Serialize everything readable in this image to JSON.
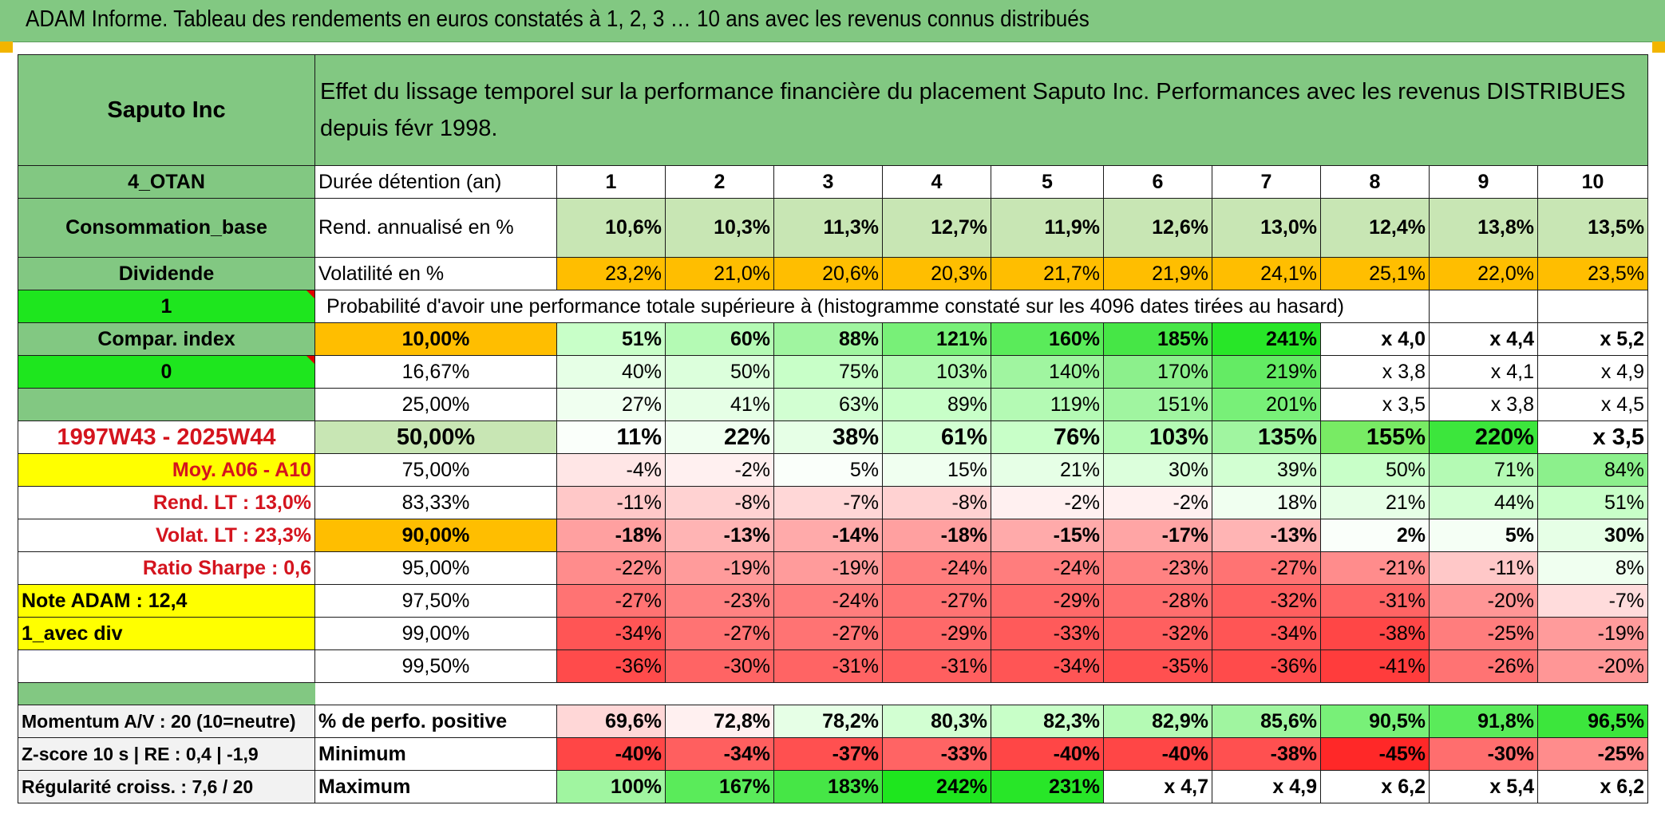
{
  "header": {
    "title": "ADAM Informe. Tableau des rendements en euros constatés à 1, 2, 3 … 10 ans avec les revenus connus distribués"
  },
  "left": {
    "company": "Saputo Inc",
    "group": "4_OTAN",
    "sector": "Consommation_base",
    "income": "Dividende",
    "flag1": "1",
    "compar": "Compar. index",
    "flag0": "0",
    "period": "1997W43 - 2025W44",
    "moy": "Moy. A06 - A10",
    "rend_lt": "Rend. LT :    13,0%",
    "volat_lt": "Volat. LT :    23,3%",
    "sharpe": "Ratio Sharpe :    0,6",
    "note": "Note ADAM : 12,4",
    "mode": "1_avec div"
  },
  "main": {
    "title": "Effet du lissage temporel sur la performance financière du placement Saputo Inc. Performances avec les revenus DISTRIBUES depuis févr 1998.",
    "duree_label": "Durée détention (an)",
    "years": [
      "1",
      "2",
      "3",
      "4",
      "5",
      "6",
      "7",
      "8",
      "9",
      "10"
    ],
    "rend_label": "Rend. annualisé en %",
    "rend": [
      "10,6%",
      "10,3%",
      "11,3%",
      "12,7%",
      "11,9%",
      "12,6%",
      "13,0%",
      "12,4%",
      "13,8%",
      "13,5%"
    ],
    "vol_label": "Volatilité en %",
    "vol": [
      "23,2%",
      "21,0%",
      "20,6%",
      "20,3%",
      "21,7%",
      "21,9%",
      "24,1%",
      "25,1%",
      "22,0%",
      "23,5%"
    ],
    "prob_title": "Probabilité d'avoir une performance totale supérieure à (histogramme constaté sur les 4096 dates tirées au hasard)",
    "rows": [
      {
        "label": "10,00%",
        "values": [
          "51%",
          "60%",
          "88%",
          "121%",
          "160%",
          "185%",
          "241%",
          "x 4,0",
          "x 4,4",
          "x 5,2"
        ]
      },
      {
        "label": "16,67%",
        "values": [
          "40%",
          "50%",
          "75%",
          "103%",
          "140%",
          "170%",
          "219%",
          "x 3,8",
          "x 4,1",
          "x 4,9"
        ]
      },
      {
        "label": "25,00%",
        "values": [
          "27%",
          "41%",
          "63%",
          "89%",
          "119%",
          "151%",
          "201%",
          "x 3,5",
          "x 3,8",
          "x 4,5"
        ]
      },
      {
        "label": "50,00%",
        "values": [
          "11%",
          "22%",
          "38%",
          "61%",
          "76%",
          "103%",
          "135%",
          "155%",
          "220%",
          "x 3,5"
        ]
      },
      {
        "label": "75,00%",
        "values": [
          "-4%",
          "-2%",
          "5%",
          "15%",
          "21%",
          "30%",
          "39%",
          "50%",
          "71%",
          "84%"
        ]
      },
      {
        "label": "83,33%",
        "values": [
          "-11%",
          "-8%",
          "-7%",
          "-8%",
          "-2%",
          "-2%",
          "18%",
          "21%",
          "44%",
          "51%"
        ]
      },
      {
        "label": "90,00%",
        "values": [
          "-18%",
          "-13%",
          "-14%",
          "-18%",
          "-15%",
          "-17%",
          "-13%",
          "2%",
          "5%",
          "30%"
        ]
      },
      {
        "label": "95,00%",
        "values": [
          "-22%",
          "-19%",
          "-19%",
          "-24%",
          "-24%",
          "-23%",
          "-27%",
          "-21%",
          "-11%",
          "8%"
        ]
      },
      {
        "label": "97,50%",
        "values": [
          "-27%",
          "-23%",
          "-24%",
          "-27%",
          "-29%",
          "-28%",
          "-32%",
          "-31%",
          "-20%",
          "-7%"
        ]
      },
      {
        "label": "99,00%",
        "values": [
          "-34%",
          "-27%",
          "-27%",
          "-29%",
          "-33%",
          "-32%",
          "-34%",
          "-38%",
          "-25%",
          "-19%"
        ]
      },
      {
        "label": "99,50%",
        "values": [
          "-36%",
          "-30%",
          "-31%",
          "-31%",
          "-34%",
          "-35%",
          "-36%",
          "-41%",
          "-26%",
          "-20%"
        ]
      }
    ]
  },
  "bottom": {
    "momentum": "Momentum A/V : 20 (10=neutre)",
    "zscore": "Z-score 10 s | RE : 0,4 | -1,9",
    "regularite": "Régularité croiss. : 7,6 / 20",
    "pos_label": "% de perfo. positive",
    "pos": [
      "69,6%",
      "72,8%",
      "78,2%",
      "80,3%",
      "82,3%",
      "82,9%",
      "85,6%",
      "90,5%",
      "91,8%",
      "96,5%"
    ],
    "min_label": "Minimum",
    "min": [
      "-40%",
      "-34%",
      "-37%",
      "-33%",
      "-40%",
      "-40%",
      "-38%",
      "-45%",
      "-30%",
      "-25%"
    ],
    "max_label": "Maximum",
    "max": [
      "100%",
      "167%",
      "183%",
      "242%",
      "231%",
      "x 4,7",
      "x 4,9",
      "x 6,2",
      "x 5,4",
      "x 6,2"
    ]
  },
  "colors": {
    "header_green": "#82c882",
    "light_green": "#c8e6b4",
    "bright_green": "#1ee61e",
    "yellow": "#ffff00",
    "orange": "#ffbe00",
    "red_text": "#d4141e"
  }
}
